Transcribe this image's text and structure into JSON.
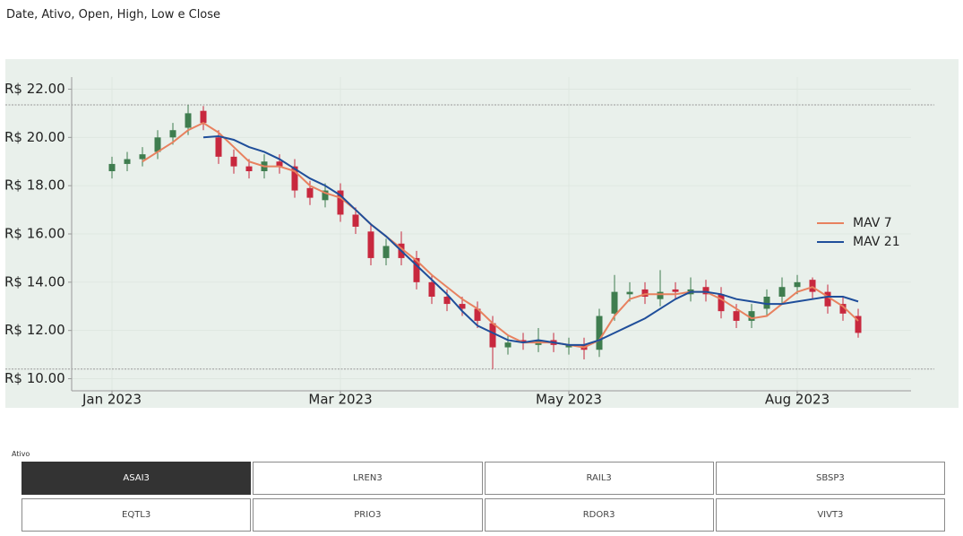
{
  "header": {
    "title": "Date, Ativo, Open, High, Low e Close"
  },
  "chart_data": {
    "type": "candlestick",
    "categories": [
      "Jan 2023",
      null,
      null,
      null,
      null,
      null,
      null,
      null,
      null,
      null,
      null,
      null,
      null,
      null,
      null,
      "Mar 2023",
      null,
      null,
      null,
      null,
      null,
      null,
      null,
      null,
      null,
      null,
      null,
      null,
      null,
      null,
      "May 2023",
      null,
      null,
      null,
      null,
      null,
      null,
      null,
      null,
      null,
      null,
      null,
      null,
      null,
      null,
      "Aug 2023",
      null,
      null,
      null,
      null
    ],
    "open": [
      18.6,
      18.9,
      19.1,
      19.4,
      20.0,
      20.4,
      21.1,
      20.0,
      19.2,
      18.8,
      18.6,
      19.0,
      18.8,
      17.9,
      17.4,
      17.8,
      16.8,
      16.1,
      15.0,
      15.6,
      15.0,
      14.0,
      13.4,
      13.1,
      12.9,
      12.3,
      11.3,
      11.6,
      11.4,
      11.6,
      11.3,
      11.4,
      11.2,
      12.7,
      13.5,
      13.7,
      13.3,
      13.7,
      13.5,
      13.8,
      13.5,
      12.8,
      12.4,
      12.9,
      13.4,
      13.8,
      14.1,
      13.6,
      13.1,
      12.6
    ],
    "high": [
      19.2,
      19.4,
      19.6,
      20.3,
      20.6,
      21.35,
      21.3,
      20.3,
      19.5,
      19.1,
      19.3,
      19.3,
      19.1,
      18.2,
      18.1,
      18.1,
      17.1,
      16.4,
      15.8,
      16.1,
      15.3,
      14.3,
      13.7,
      13.4,
      13.2,
      12.6,
      11.8,
      11.9,
      12.1,
      11.9,
      11.7,
      11.7,
      12.9,
      14.3,
      14.0,
      14.0,
      14.5,
      14.0,
      14.2,
      14.1,
      13.8,
      13.1,
      13.1,
      13.7,
      14.2,
      14.3,
      14.2,
      13.9,
      13.4,
      12.9
    ],
    "low": [
      18.3,
      18.6,
      18.8,
      19.1,
      19.7,
      20.1,
      20.3,
      18.9,
      18.5,
      18.3,
      18.3,
      18.5,
      17.5,
      17.2,
      17.1,
      16.5,
      16.0,
      14.7,
      14.7,
      14.7,
      13.7,
      13.1,
      12.8,
      12.6,
      12.1,
      10.4,
      11.0,
      11.2,
      11.1,
      11.1,
      11.0,
      10.8,
      10.9,
      12.4,
      13.2,
      13.1,
      13.0,
      13.3,
      13.2,
      13.2,
      12.5,
      12.1,
      12.1,
      12.6,
      13.1,
      13.5,
      13.3,
      12.7,
      12.4,
      11.7
    ],
    "close": [
      18.9,
      19.1,
      19.3,
      20.0,
      20.3,
      21.0,
      20.6,
      19.2,
      18.8,
      18.6,
      19.0,
      18.8,
      17.8,
      17.5,
      17.8,
      16.8,
      16.3,
      15.0,
      15.5,
      15.0,
      14.0,
      13.4,
      13.1,
      12.9,
      12.4,
      11.3,
      11.5,
      11.5,
      11.6,
      11.4,
      11.4,
      11.2,
      12.6,
      13.6,
      13.6,
      13.4,
      13.6,
      13.6,
      13.7,
      13.5,
      12.8,
      12.4,
      12.8,
      13.4,
      13.8,
      14.0,
      13.6,
      13.0,
      12.7,
      11.9
    ],
    "up_color": "#3f7d4f",
    "down_color": "#c8283e",
    "series": [
      {
        "name": "MAV 7",
        "color": "#e8815f",
        "values": [
          null,
          null,
          19.0,
          19.4,
          19.8,
          20.3,
          20.6,
          20.2,
          19.6,
          19.0,
          18.8,
          18.8,
          18.6,
          18.0,
          17.7,
          17.5,
          17.0,
          16.4,
          15.9,
          15.4,
          14.9,
          14.3,
          13.8,
          13.3,
          12.9,
          12.3,
          11.8,
          11.5,
          11.5,
          11.5,
          11.4,
          11.3,
          11.6,
          12.6,
          13.3,
          13.5,
          13.5,
          13.5,
          13.6,
          13.6,
          13.3,
          12.9,
          12.5,
          12.6,
          13.1,
          13.6,
          13.8,
          13.4,
          13.0,
          12.4
        ]
      },
      {
        "name": "MAV 21",
        "color": "#1f4e9a",
        "values": [
          null,
          null,
          null,
          null,
          null,
          null,
          20.0,
          20.05,
          19.9,
          19.6,
          19.4,
          19.1,
          18.7,
          18.3,
          18.0,
          17.6,
          17.0,
          16.4,
          15.9,
          15.3,
          14.7,
          14.1,
          13.5,
          12.8,
          12.2,
          11.9,
          11.6,
          11.5,
          11.6,
          11.5,
          11.4,
          11.4,
          11.6,
          11.9,
          12.2,
          12.5,
          12.9,
          13.3,
          13.6,
          13.6,
          13.5,
          13.3,
          13.2,
          13.1,
          13.1,
          13.2,
          13.3,
          13.4,
          13.4,
          13.2
        ]
      }
    ],
    "hlines": [
      21.35,
      10.4
    ],
    "ylim": [
      9.5,
      22.5
    ],
    "yticks": [
      {
        "value": 10,
        "label": "R$ 10.00"
      },
      {
        "value": 12,
        "label": "R$ 12.00"
      },
      {
        "value": 14,
        "label": "R$ 14.00"
      },
      {
        "value": 16,
        "label": "R$ 16.00"
      },
      {
        "value": 18,
        "label": "R$ 18.00"
      },
      {
        "value": 20,
        "label": "R$ 20.00"
      },
      {
        "value": 22,
        "label": "R$ 22.00"
      }
    ],
    "grid": true,
    "legend": "right"
  },
  "slicer": {
    "title": "Ativo",
    "options": [
      "ASAI3",
      "LREN3",
      "RAIL3",
      "SBSP3",
      "EQTL3",
      "PRIO3",
      "RDOR3",
      "VIVT3"
    ],
    "selected": 0
  }
}
